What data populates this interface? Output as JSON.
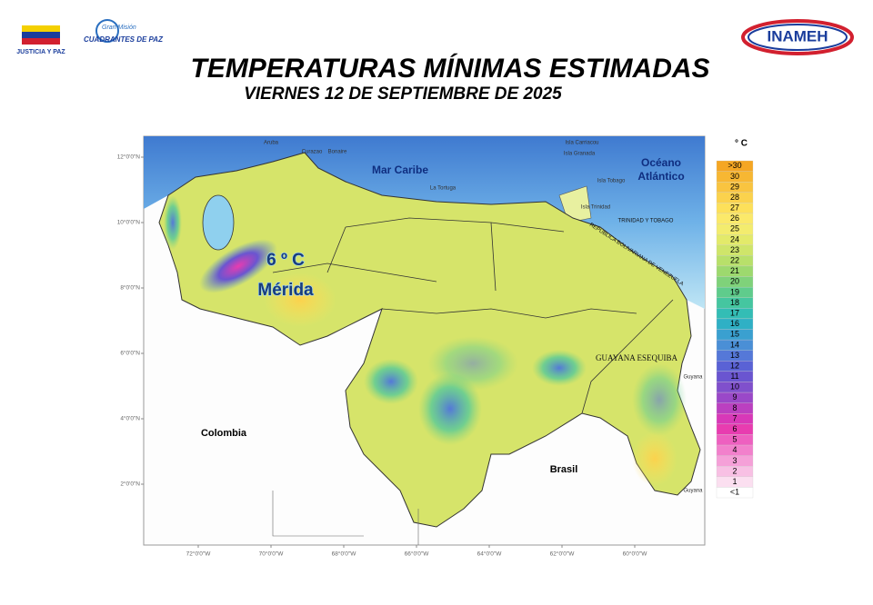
{
  "header": {
    "title": "TEMPERATURAS MÍNIMAS ESTIMADAS",
    "subtitle": "VIERNES 12 DE SEPTIEMBRE DE 2025"
  },
  "logos": {
    "left": "JUSTICIA Y PAZ",
    "mission_top": "Gran Misión",
    "mission": "CUADRANTES DE PAZ",
    "right": "INAMEH"
  },
  "map": {
    "labels": {
      "sea": "Mar Caribe",
      "ocean_1": "Océano",
      "ocean_2": "Atlántico",
      "tt": "TRINIDAD Y TOBAGO",
      "ven": "REPÚBLICA BOLIVARIANA DE VENEZUELA",
      "esequiba": "GUAYANA ESEQUIBA",
      "colombia": "Colombia",
      "brasil": "Brasil",
      "guyana_1": "Guyana",
      "guyana_2": "Guyana",
      "aruba": "Aruba",
      "curazao": "Curazao",
      "bonaire": "Bonaire",
      "carriacou": "Isla Carriacou",
      "granada": "Isla Granada",
      "tobago": "Isla Tobago",
      "trinidad": "Isla Trinidad",
      "tortuga": "La Tortuga"
    },
    "highlight": {
      "temp": "6 º C",
      "place": "Mérida"
    },
    "lat_labels": [
      "12°0'0\"N",
      "10°0'0\"N",
      "8°0'0\"N",
      "6°0'0\"N",
      "4°0'0\"N",
      "2°0'0\"N"
    ],
    "lon_labels": [
      "72°0'0\"W",
      "70°0'0\"W",
      "68°0'0\"W",
      "66°0'0\"W",
      "64°0'0\"W",
      "62°0'0\"W",
      "60°0'0\"W"
    ]
  },
  "legend": {
    "title": "° C",
    "items": [
      {
        "label": ">30",
        "color": "#f5a623"
      },
      {
        "label": "30",
        "color": "#f7b733"
      },
      {
        "label": "29",
        "color": "#f9c440"
      },
      {
        "label": "28",
        "color": "#fbd24d"
      },
      {
        "label": "27",
        "color": "#fde05a"
      },
      {
        "label": "26",
        "color": "#fbe96a"
      },
      {
        "label": "25",
        "color": "#f3ec6e"
      },
      {
        "label": "24",
        "color": "#e3ea6a"
      },
      {
        "label": "23",
        "color": "#cfe56a"
      },
      {
        "label": "22",
        "color": "#b8e06a"
      },
      {
        "label": "21",
        "color": "#9dd96e"
      },
      {
        "label": "20",
        "color": "#7fd27a"
      },
      {
        "label": "19",
        "color": "#5fcc8c"
      },
      {
        "label": "18",
        "color": "#45c6a0"
      },
      {
        "label": "17",
        "color": "#33bdb5"
      },
      {
        "label": "16",
        "color": "#2fb0c5"
      },
      {
        "label": "15",
        "color": "#3aa0d0"
      },
      {
        "label": "14",
        "color": "#4a8fd6"
      },
      {
        "label": "13",
        "color": "#5578d8"
      },
      {
        "label": "12",
        "color": "#5a62d5"
      },
      {
        "label": "11",
        "color": "#6a55d0"
      },
      {
        "label": "10",
        "color": "#8050cc"
      },
      {
        "label": "9",
        "color": "#9a48c8"
      },
      {
        "label": "8",
        "color": "#bb40c0"
      },
      {
        "label": "7",
        "color": "#d838b8"
      },
      {
        "label": "6",
        "color": "#e83cb0"
      },
      {
        "label": "5",
        "color": "#ee60c0"
      },
      {
        "label": "4",
        "color": "#f280cc"
      },
      {
        "label": "3",
        "color": "#f5a0d8"
      },
      {
        "label": "2",
        "color": "#f8c0e4"
      },
      {
        "label": "1",
        "color": "#fbdff0"
      },
      {
        "label": "<1",
        "color": "#ffffff"
      }
    ]
  }
}
